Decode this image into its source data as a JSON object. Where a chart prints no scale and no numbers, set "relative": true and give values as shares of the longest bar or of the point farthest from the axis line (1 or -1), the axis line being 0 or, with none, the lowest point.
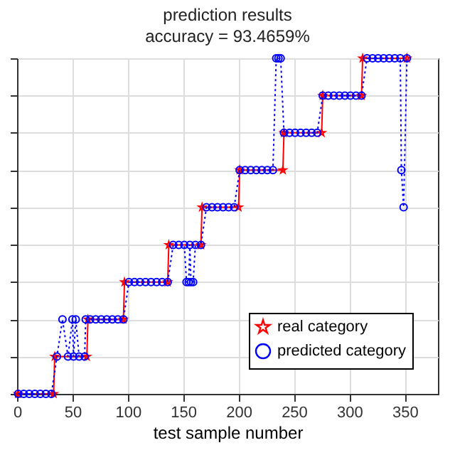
{
  "chart_data": {
    "type": "line",
    "title": "prediction results",
    "subtitle": "accuracy = 93.4659%",
    "xlabel": "test sample number",
    "xlim": [
      0,
      380
    ],
    "xticks": [
      0,
      50,
      100,
      150,
      200,
      250,
      300,
      350
    ],
    "relative": true,
    "grid": true,
    "legend": "bottom right",
    "series": [
      {
        "name": "real category",
        "color": "#ff0000",
        "marker": "star",
        "line_style": "solid",
        "x": [
          1,
          33,
          34,
          63,
          64,
          96,
          97,
          136,
          137,
          166,
          167,
          200,
          201,
          240,
          241,
          275,
          276,
          311,
          312,
          352
        ],
        "values": [
          0,
          0,
          0.111,
          0.111,
          0.222,
          0.222,
          0.333,
          0.333,
          0.444,
          0.444,
          0.556,
          0.556,
          0.667,
          0.667,
          0.778,
          0.778,
          0.889,
          0.889,
          1,
          1
        ]
      },
      {
        "name": "predicted category",
        "color": "#0000ff",
        "marker": "circle",
        "line_style": "dotted",
        "x": [
          1,
          6,
          11,
          16,
          21,
          26,
          31,
          36,
          41,
          46,
          50,
          51,
          53,
          56,
          61,
          62,
          66,
          71,
          76,
          81,
          86,
          91,
          96,
          101,
          106,
          111,
          116,
          121,
          126,
          131,
          136,
          141,
          146,
          151,
          153,
          155,
          156,
          157,
          159,
          161,
          166,
          171,
          176,
          181,
          186,
          191,
          196,
          201,
          206,
          211,
          216,
          221,
          226,
          231,
          234,
          236,
          238,
          241,
          246,
          251,
          256,
          261,
          266,
          271,
          276,
          281,
          286,
          291,
          296,
          301,
          306,
          311,
          316,
          321,
          326,
          331,
          336,
          341,
          346,
          347,
          349,
          352
        ],
        "values": [
          0,
          0,
          0,
          0,
          0,
          0,
          0,
          0.111,
          0.222,
          0.111,
          0.222,
          0.111,
          0.222,
          0.111,
          0.111,
          0.222,
          0.222,
          0.222,
          0.222,
          0.222,
          0.222,
          0.222,
          0.222,
          0.333,
          0.333,
          0.333,
          0.333,
          0.333,
          0.333,
          0.333,
          0.333,
          0.444,
          0.444,
          0.444,
          0.333,
          0.333,
          0.444,
          0.333,
          0.333,
          0.444,
          0.444,
          0.556,
          0.556,
          0.556,
          0.556,
          0.556,
          0.556,
          0.667,
          0.667,
          0.667,
          0.667,
          0.667,
          0.667,
          0.667,
          1,
          1,
          1,
          0.778,
          0.778,
          0.778,
          0.778,
          0.778,
          0.778,
          0.778,
          0.889,
          0.889,
          0.889,
          0.889,
          0.889,
          0.889,
          0.889,
          0.889,
          1,
          1,
          1,
          1,
          1,
          1,
          1,
          0.667,
          0.556,
          1
        ]
      }
    ]
  }
}
